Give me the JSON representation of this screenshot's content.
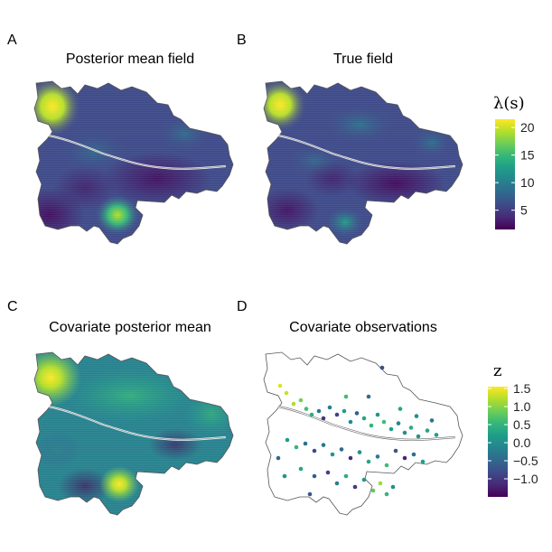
{
  "chart_data": [
    {
      "type": "heatmap",
      "panel_label": "A",
      "title": "Posterior mean field",
      "description_scale": "lambda",
      "hotspots": [
        {
          "where": "north-west lobe",
          "value": 21
        },
        {
          "where": "south lobe",
          "value": 18
        }
      ]
    },
    {
      "type": "heatmap",
      "panel_label": "B",
      "title": "True field",
      "description_scale": "lambda",
      "hotspots": [
        {
          "where": "north-west lobe",
          "value": 21
        },
        {
          "where": "south lobe",
          "value": 15
        }
      ]
    },
    {
      "type": "heatmap",
      "panel_label": "C",
      "title": "Covariate posterior mean",
      "description_scale": "z",
      "hotspots": [
        {
          "where": "north-west lobe",
          "value": 1.5
        },
        {
          "where": "south lobe",
          "value": 1.2
        }
      ]
    },
    {
      "type": "scatter",
      "panel_label": "D",
      "title": "Covariate observations",
      "description_scale": "z",
      "points": [
        {
          "x": -0.93,
          "y": 0.7,
          "z": 1.4
        },
        {
          "x": -0.86,
          "y": 0.6,
          "z": 1.3
        },
        {
          "x": -0.78,
          "y": 0.45,
          "z": 1.2
        },
        {
          "x": -0.7,
          "y": 0.5,
          "z": 0.9
        },
        {
          "x": -0.64,
          "y": 0.38,
          "z": 0.6
        },
        {
          "x": -0.58,
          "y": 0.3,
          "z": 0.4
        },
        {
          "x": -0.5,
          "y": 0.35,
          "z": -0.3
        },
        {
          "x": -0.45,
          "y": 0.25,
          "z": -1.0
        },
        {
          "x": -0.38,
          "y": 0.4,
          "z": -0.2
        },
        {
          "x": -0.3,
          "y": 0.3,
          "z": -0.9
        },
        {
          "x": -0.22,
          "y": 0.35,
          "z": 0.2
        },
        {
          "x": -0.15,
          "y": 0.2,
          "z": 0.0
        },
        {
          "x": -0.08,
          "y": 0.32,
          "z": -0.6
        },
        {
          "x": 0.0,
          "y": 0.25,
          "z": 0.3
        },
        {
          "x": 0.08,
          "y": 0.15,
          "z": 0.5
        },
        {
          "x": 0.15,
          "y": 0.3,
          "z": 0.1
        },
        {
          "x": 0.22,
          "y": 0.2,
          "z": 0.6
        },
        {
          "x": 0.3,
          "y": 0.1,
          "z": 0.2
        },
        {
          "x": 0.38,
          "y": 0.18,
          "z": -0.1
        },
        {
          "x": 0.45,
          "y": 0.05,
          "z": 0.0
        },
        {
          "x": 0.52,
          "y": 0.12,
          "z": 0.4
        },
        {
          "x": 0.6,
          "y": 0.0,
          "z": 0.1
        },
        {
          "x": 0.7,
          "y": 0.08,
          "z": 0.3
        },
        {
          "x": 0.8,
          "y": 0.02,
          "z": 0.2
        },
        {
          "x": -0.85,
          "y": -0.05,
          "z": 0.2
        },
        {
          "x": -0.75,
          "y": -0.15,
          "z": 0.5
        },
        {
          "x": -0.65,
          "y": -0.1,
          "z": -0.4
        },
        {
          "x": -0.55,
          "y": -0.2,
          "z": -0.8
        },
        {
          "x": -0.45,
          "y": -0.12,
          "z": -0.3
        },
        {
          "x": -0.35,
          "y": -0.25,
          "z": 0.1
        },
        {
          "x": -0.25,
          "y": -0.18,
          "z": -0.5
        },
        {
          "x": -0.15,
          "y": -0.3,
          "z": -1.1
        },
        {
          "x": -0.05,
          "y": -0.22,
          "z": 0.0
        },
        {
          "x": 0.05,
          "y": -0.35,
          "z": 0.3
        },
        {
          "x": 0.15,
          "y": -0.28,
          "z": -0.2
        },
        {
          "x": 0.25,
          "y": -0.4,
          "z": 0.6
        },
        {
          "x": 0.35,
          "y": -0.2,
          "z": -0.7
        },
        {
          "x": 0.45,
          "y": -0.3,
          "z": -1.2
        },
        {
          "x": 0.55,
          "y": -0.25,
          "z": -0.4
        },
        {
          "x": 0.65,
          "y": -0.35,
          "z": 0.2
        },
        {
          "x": -0.7,
          "y": -0.45,
          "z": 0.3
        },
        {
          "x": -0.55,
          "y": -0.55,
          "z": -0.6
        },
        {
          "x": -0.4,
          "y": -0.5,
          "z": -0.9
        },
        {
          "x": -0.3,
          "y": -0.65,
          "z": -0.2
        },
        {
          "x": -0.2,
          "y": -0.55,
          "z": 0.4
        },
        {
          "x": -0.1,
          "y": -0.7,
          "z": -1.0
        },
        {
          "x": 0.0,
          "y": -0.6,
          "z": 0.1
        },
        {
          "x": 0.1,
          "y": -0.75,
          "z": 0.8
        },
        {
          "x": 0.18,
          "y": -0.65,
          "z": 1.1
        },
        {
          "x": 0.25,
          "y": -0.8,
          "z": 0.5
        },
        {
          "x": 0.32,
          "y": -0.7,
          "z": 0.0
        },
        {
          "x": -0.95,
          "y": -0.3,
          "z": -0.5
        },
        {
          "x": -0.88,
          "y": -0.55,
          "z": 0.1
        },
        {
          "x": -0.6,
          "y": -0.8,
          "z": -0.7
        },
        {
          "x": 0.05,
          "y": 0.55,
          "z": -0.4
        },
        {
          "x": -0.2,
          "y": 0.55,
          "z": 0.6
        },
        {
          "x": 0.4,
          "y": 0.38,
          "z": 0.3
        },
        {
          "x": 0.58,
          "y": 0.28,
          "z": 0.0
        },
        {
          "x": 0.75,
          "y": 0.22,
          "z": -0.3
        },
        {
          "x": 0.2,
          "y": 0.95,
          "z": -0.8
        }
      ]
    }
  ],
  "legends": {
    "lambda": {
      "title": "λ(s)",
      "ticks": [
        5,
        10,
        15,
        20
      ],
      "range": [
        1.5,
        21.5
      ]
    },
    "z": {
      "title": "z",
      "ticks": [
        1.5,
        1.0,
        0.5,
        0.0,
        -0.5,
        -1.0
      ],
      "tick_labels": [
        "1.5",
        "1.0",
        "0.5",
        "0.0",
        "−0.5",
        "−1.0"
      ],
      "range": [
        -1.5,
        1.55
      ]
    }
  },
  "colors": {
    "viridis": [
      "#440154",
      "#482878",
      "#3e4a89",
      "#31688e",
      "#26828e",
      "#1f9e89",
      "#35b779",
      "#6ece58",
      "#b5de2b",
      "#fde725"
    ],
    "outline": "#555555",
    "river": "#ffffff"
  }
}
